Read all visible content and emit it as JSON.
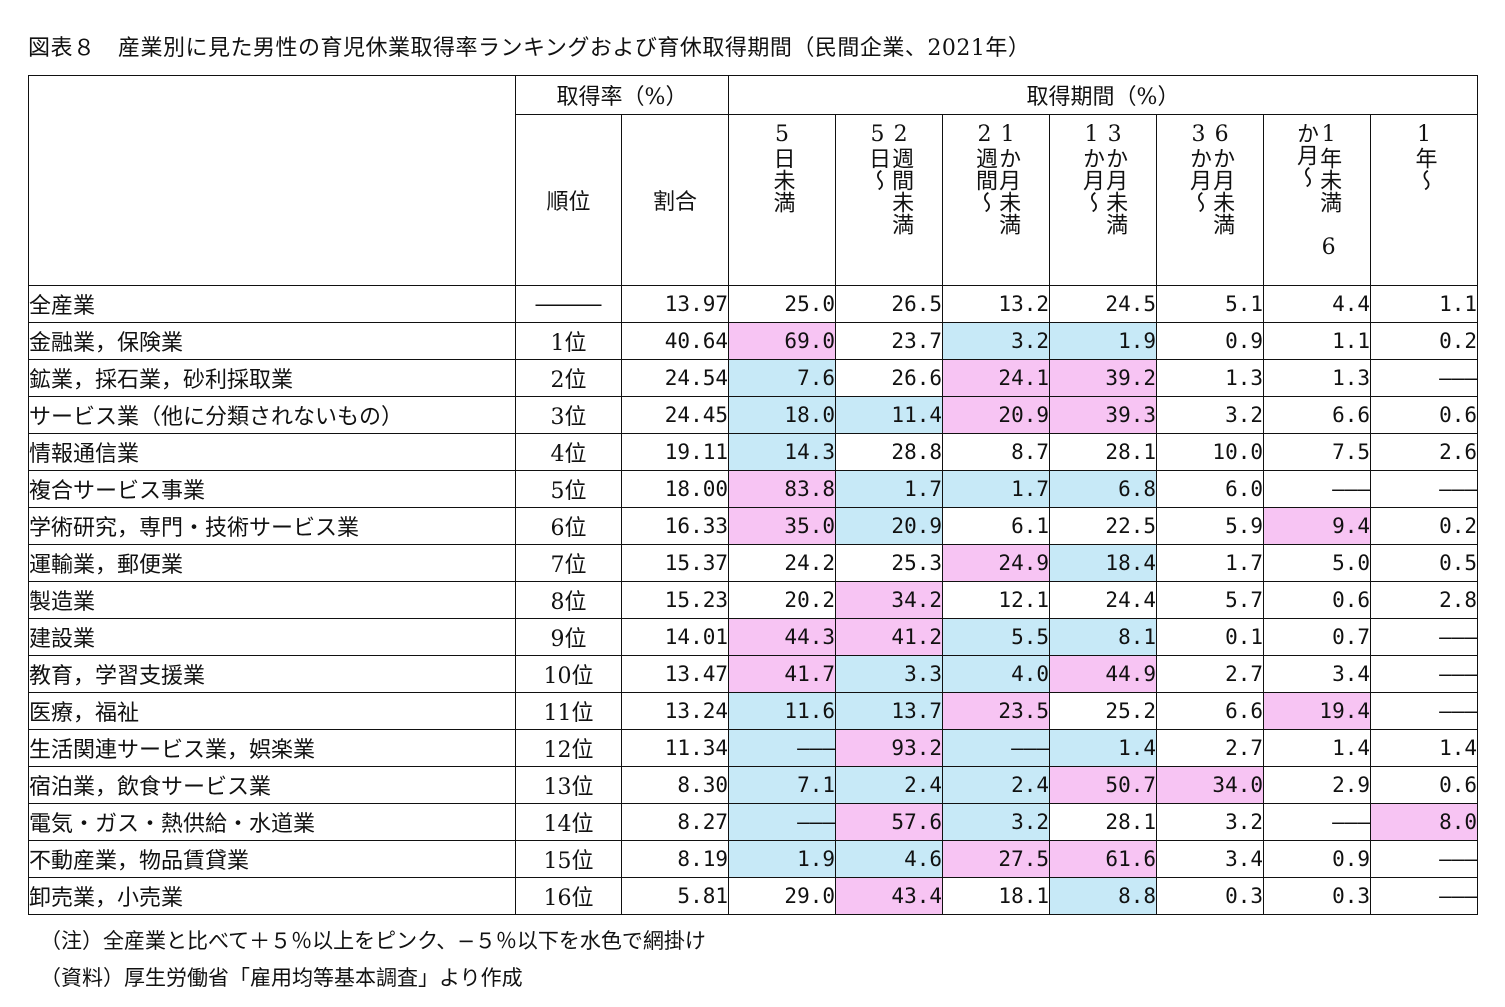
{
  "title": "図表８　産業別に見た男性の育児休業取得率ランキングおよび育休取得期間（民間企業、2021年）",
  "header": {
    "group_rate": "取得率（%）",
    "group_period": "取得期間（%）",
    "rank": "順位",
    "ratio": "割合",
    "periods": [
      "5日未満",
      "2週間未満　5日〜",
      "1か月未満　2週間〜",
      "3か月未満　1か月〜",
      "6か月未満　3か月〜",
      "1年未満　6か月〜",
      "1年〜"
    ]
  },
  "colors": {
    "pink": "#f7c4f3",
    "blue": "#c7e9f7"
  },
  "rows": [
    {
      "industry": "全産業",
      "rank": "―――",
      "ratio": "13.97",
      "v": [
        "25.0",
        "26.5",
        "13.2",
        "24.5",
        "5.1",
        "4.4",
        "1.1"
      ],
      "c": [
        "",
        "",
        "",
        "",
        "",
        "",
        ""
      ]
    },
    {
      "industry": "金融業，保険業",
      "rank": "1位",
      "ratio": "40.64",
      "v": [
        "69.0",
        "23.7",
        "3.2",
        "1.9",
        "0.9",
        "1.1",
        "0.2"
      ],
      "c": [
        "pink",
        "",
        "blue",
        "blue",
        "",
        "",
        ""
      ]
    },
    {
      "industry": "鉱業，採石業，砂利採取業",
      "rank": "2位",
      "ratio": "24.54",
      "v": [
        "7.6",
        "26.6",
        "24.1",
        "39.2",
        "1.3",
        "1.3",
        "―――"
      ],
      "c": [
        "blue",
        "",
        "pink",
        "pink",
        "",
        "",
        ""
      ]
    },
    {
      "industry": "サービス業（他に分類されないもの）",
      "rank": "3位",
      "ratio": "24.45",
      "v": [
        "18.0",
        "11.4",
        "20.9",
        "39.3",
        "3.2",
        "6.6",
        "0.6"
      ],
      "c": [
        "blue",
        "blue",
        "pink",
        "pink",
        "",
        "",
        ""
      ]
    },
    {
      "industry": "情報通信業",
      "rank": "4位",
      "ratio": "19.11",
      "v": [
        "14.3",
        "28.8",
        "8.7",
        "28.1",
        "10.0",
        "7.5",
        "2.6"
      ],
      "c": [
        "blue",
        "",
        "",
        "",
        "",
        "",
        ""
      ]
    },
    {
      "industry": "複合サービス事業",
      "rank": "5位",
      "ratio": "18.00",
      "v": [
        "83.8",
        "1.7",
        "1.7",
        "6.8",
        "6.0",
        "―――",
        "―――"
      ],
      "c": [
        "pink",
        "blue",
        "blue",
        "blue",
        "",
        "",
        ""
      ]
    },
    {
      "industry": "学術研究，専門・技術サービス業",
      "rank": "6位",
      "ratio": "16.33",
      "v": [
        "35.0",
        "20.9",
        "6.1",
        "22.5",
        "5.9",
        "9.4",
        "0.2"
      ],
      "c": [
        "pink",
        "blue",
        "",
        "",
        "",
        "pink",
        ""
      ]
    },
    {
      "industry": "運輸業，郵便業",
      "rank": "7位",
      "ratio": "15.37",
      "v": [
        "24.2",
        "25.3",
        "24.9",
        "18.4",
        "1.7",
        "5.0",
        "0.5"
      ],
      "c": [
        "",
        "",
        "pink",
        "blue",
        "",
        "",
        ""
      ]
    },
    {
      "industry": "製造業",
      "rank": "8位",
      "ratio": "15.23",
      "v": [
        "20.2",
        "34.2",
        "12.1",
        "24.4",
        "5.7",
        "0.6",
        "2.8"
      ],
      "c": [
        "",
        "pink",
        "",
        "",
        "",
        "",
        ""
      ]
    },
    {
      "industry": "建設業",
      "rank": "9位",
      "ratio": "14.01",
      "v": [
        "44.3",
        "41.2",
        "5.5",
        "8.1",
        "0.1",
        "0.7",
        "―――"
      ],
      "c": [
        "pink",
        "pink",
        "blue",
        "blue",
        "",
        "",
        ""
      ]
    },
    {
      "industry": "教育，学習支援業",
      "rank": "10位",
      "ratio": "13.47",
      "v": [
        "41.7",
        "3.3",
        "4.0",
        "44.9",
        "2.7",
        "3.4",
        "―――"
      ],
      "c": [
        "pink",
        "blue",
        "blue",
        "pink",
        "",
        "",
        ""
      ]
    },
    {
      "industry": "医療，福祉",
      "rank": "11位",
      "ratio": "13.24",
      "v": [
        "11.6",
        "13.7",
        "23.5",
        "25.2",
        "6.6",
        "19.4",
        "―――"
      ],
      "c": [
        "blue",
        "blue",
        "pink",
        "",
        "",
        "pink",
        ""
      ]
    },
    {
      "industry": "生活関連サービス業，娯楽業",
      "rank": "12位",
      "ratio": "11.34",
      "v": [
        "―――",
        "93.2",
        "―――",
        "1.4",
        "2.7",
        "1.4",
        "1.4"
      ],
      "c": [
        "blue",
        "pink",
        "blue",
        "blue",
        "",
        "",
        ""
      ]
    },
    {
      "industry": "宿泊業，飲食サービス業",
      "rank": "13位",
      "ratio": "8.30",
      "v": [
        "7.1",
        "2.4",
        "2.4",
        "50.7",
        "34.0",
        "2.9",
        "0.6"
      ],
      "c": [
        "blue",
        "blue",
        "blue",
        "pink",
        "pink",
        "",
        ""
      ]
    },
    {
      "industry": "電気・ガス・熱供給・水道業",
      "rank": "14位",
      "ratio": "8.27",
      "v": [
        "―――",
        "57.6",
        "3.2",
        "28.1",
        "3.2",
        "―――",
        "8.0"
      ],
      "c": [
        "blue",
        "pink",
        "blue",
        "",
        "",
        "",
        "pink"
      ]
    },
    {
      "industry": "不動産業，物品賃貸業",
      "rank": "15位",
      "ratio": "8.19",
      "v": [
        "1.9",
        "4.6",
        "27.5",
        "61.6",
        "3.4",
        "0.9",
        "―――"
      ],
      "c": [
        "blue",
        "blue",
        "pink",
        "pink",
        "",
        "",
        ""
      ]
    },
    {
      "industry": "卸売業，小売業",
      "rank": "16位",
      "ratio": "5.81",
      "v": [
        "29.0",
        "43.4",
        "18.1",
        "8.8",
        "0.3",
        "0.3",
        "―――"
      ],
      "c": [
        "",
        "pink",
        "",
        "blue",
        "",
        "",
        ""
      ]
    }
  ],
  "notes": {
    "note": "（注）全産業と比べて＋５％以上をピンク、−５％以下を水色で網掛け",
    "source": "（資料）厚生労働省「雇用均等基本調査」より作成"
  }
}
